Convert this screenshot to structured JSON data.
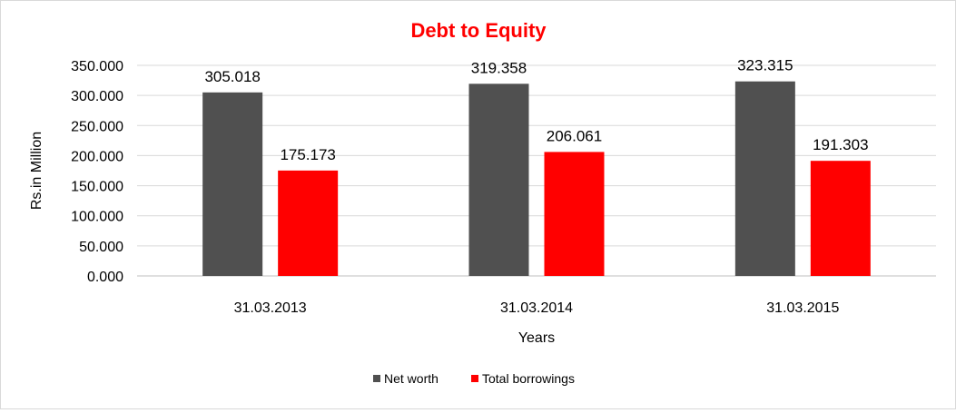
{
  "chart_data": {
    "type": "bar",
    "title": "Debt to Equity",
    "xlabel": "Years",
    "ylabel": "Rs.in Million",
    "categories": [
      "31.03.2013",
      "31.03.2014",
      "31.03.2015"
    ],
    "series": [
      {
        "name": "Net worth",
        "values": [
          305.018,
          319.358,
          323.315
        ],
        "labels": [
          "305.018",
          "319.358",
          "323.315"
        ],
        "color": "#505050"
      },
      {
        "name": "Total borrowings",
        "values": [
          175.173,
          206.061,
          191.303
        ],
        "labels": [
          "175.173",
          "206.061",
          "191.303"
        ],
        "color": "#ff0000"
      }
    ],
    "ylim": [
      0,
      350
    ],
    "yticks": [
      0,
      50,
      100,
      150,
      200,
      250,
      300,
      350
    ],
    "ytick_labels": [
      "0.000",
      "50.000",
      "100.000",
      "150.000",
      "200.000",
      "250.000",
      "300.000",
      "350.000"
    ],
    "grid": true,
    "legend_position": "bottom",
    "title_color": "#ff0000"
  }
}
